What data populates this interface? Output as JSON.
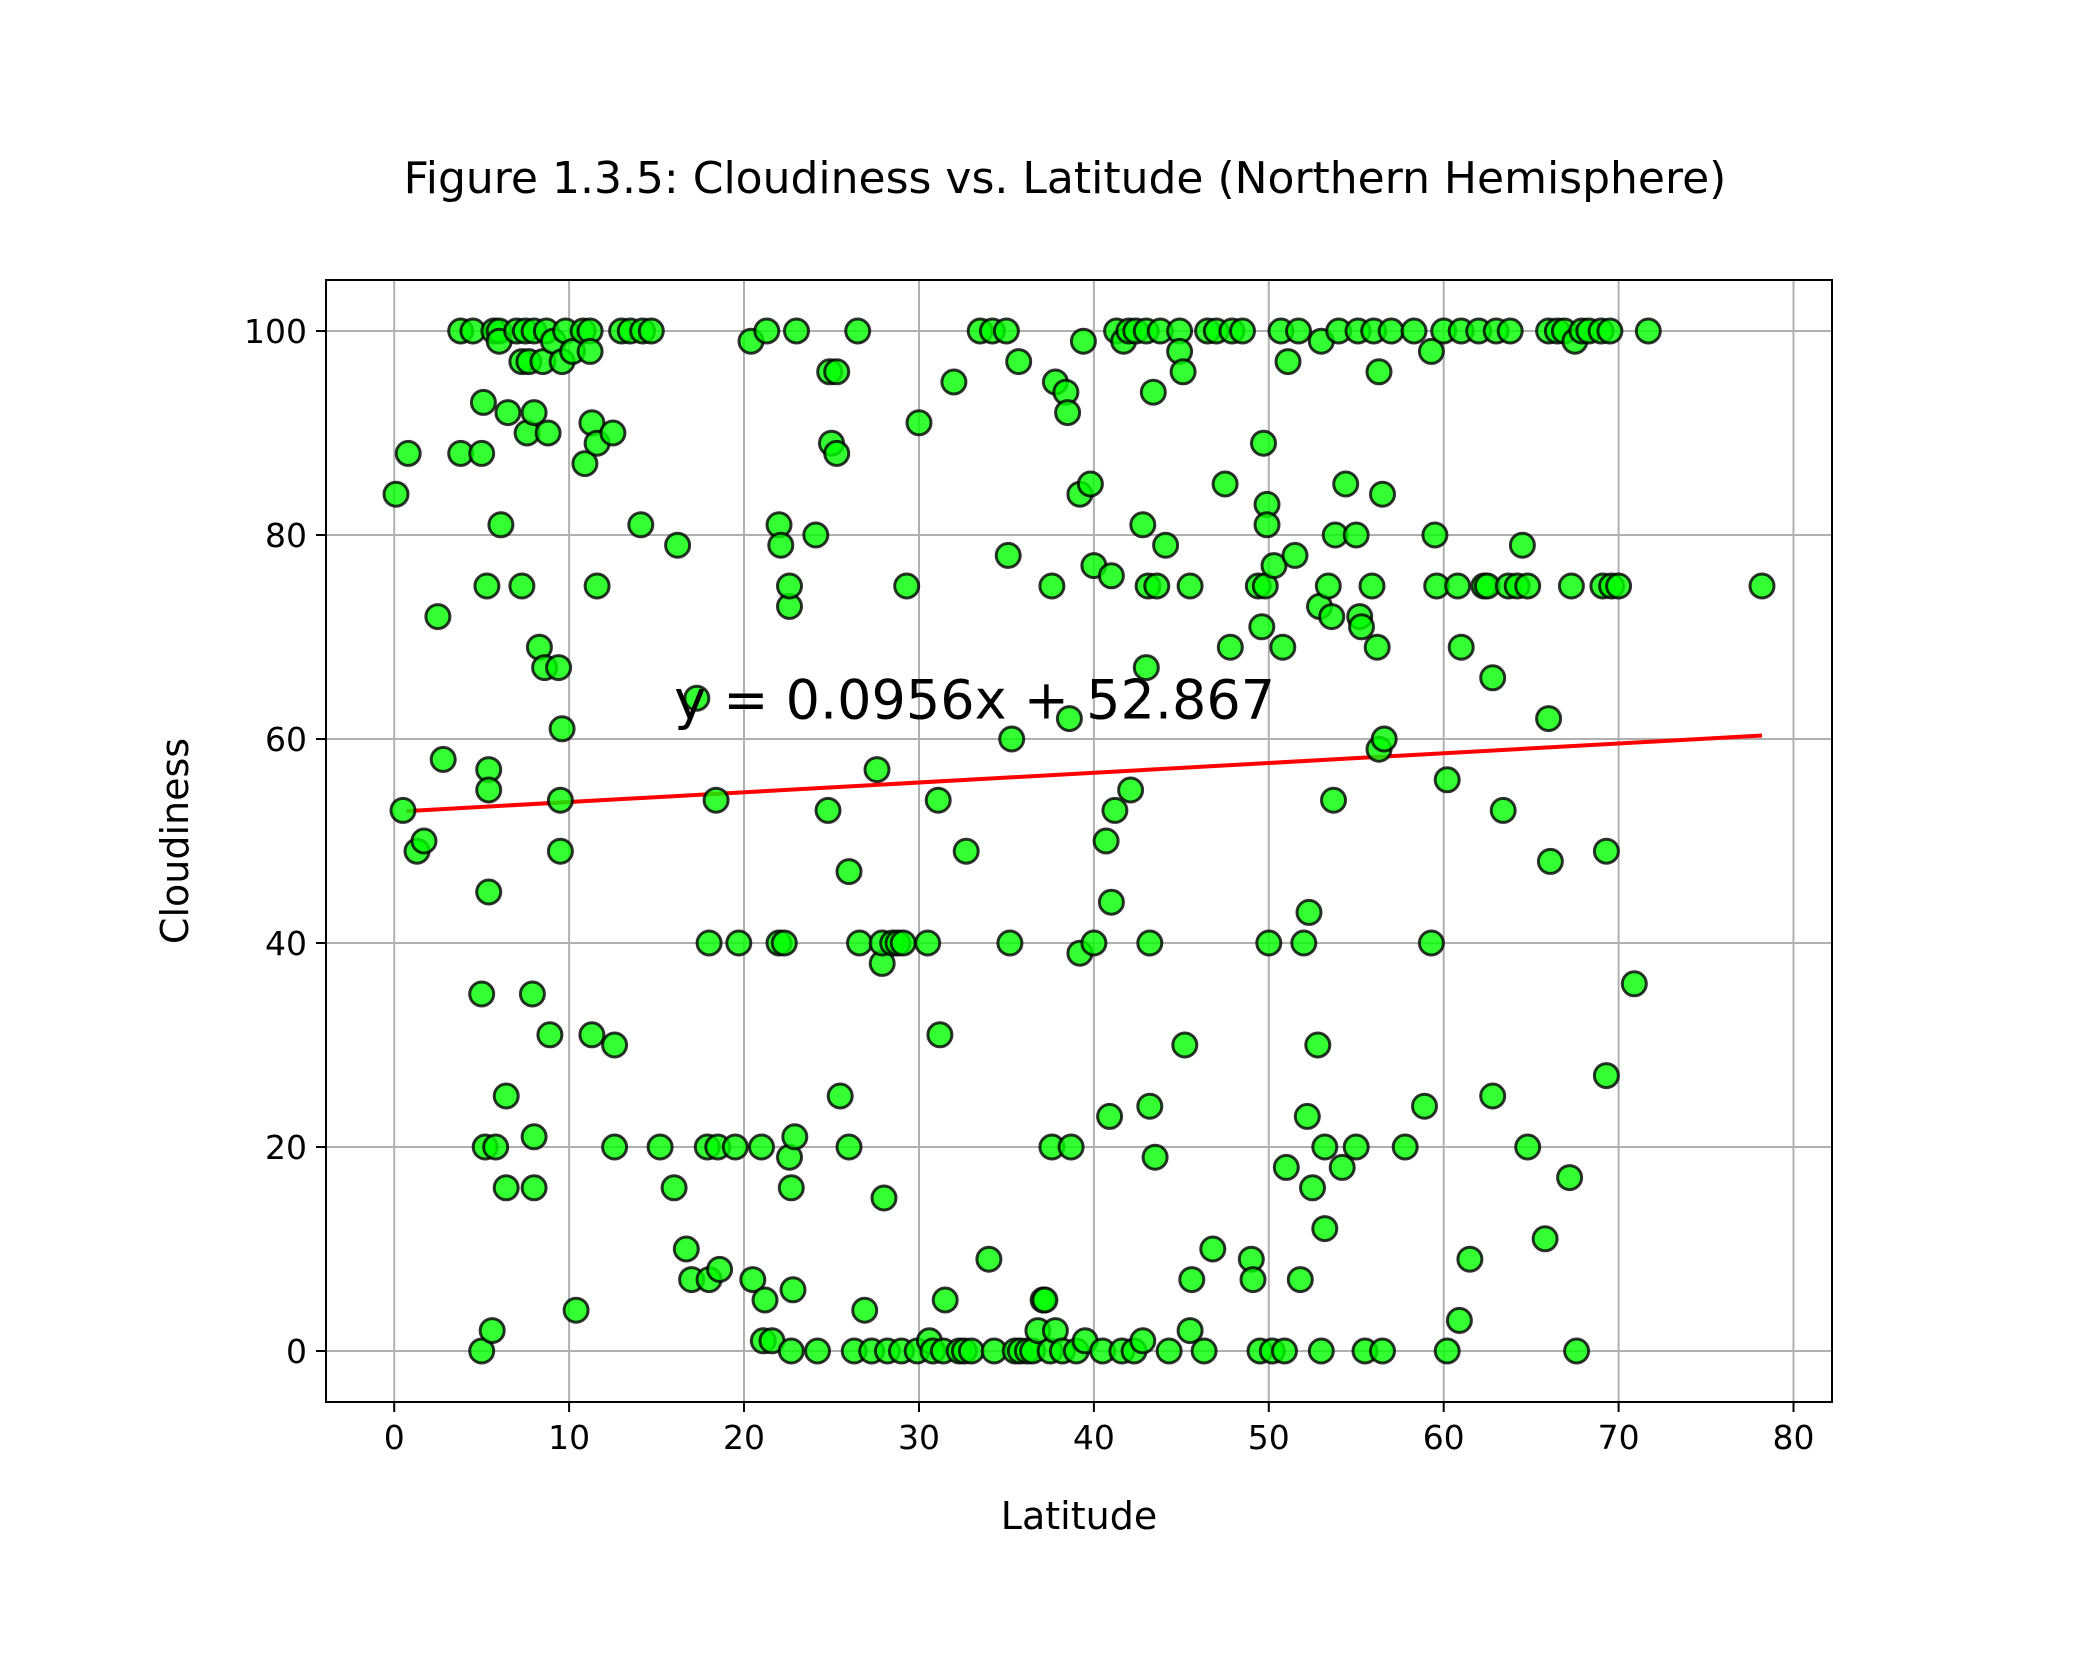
{
  "chart_data": {
    "type": "scatter",
    "title": "Figure 1.3.5: Cloudiness vs. Latitude (Northern Hemisphere)",
    "xlabel": "Latitude",
    "ylabel": "Cloudiness",
    "xlim": [
      -3.9,
      82.2
    ],
    "ylim": [
      -5,
      105
    ],
    "xticks": [
      0,
      10,
      20,
      30,
      40,
      50,
      60,
      70,
      80
    ],
    "yticks": [
      0,
      20,
      40,
      60,
      80,
      100
    ],
    "grid": true,
    "colors": {
      "marker_fill": "#00ff00",
      "marker_edge": "#000000",
      "regression": "#ff0000",
      "annotation": "#0000ff",
      "grid": "#b0b0b0"
    },
    "regression": {
      "slope": 0.0956,
      "intercept": 52.867,
      "x_range": [
        0.7,
        78.2
      ],
      "equation_label": "y = 0.0956x + 52.867",
      "label_x": 16,
      "label_y": 62
    },
    "points": [
      [
        0.1,
        84
      ],
      [
        0.5,
        53
      ],
      [
        0.8,
        88
      ],
      [
        1.3,
        49
      ],
      [
        1.7,
        50
      ],
      [
        2.5,
        72
      ],
      [
        2.8,
        58
      ],
      [
        3.8,
        100
      ],
      [
        3.8,
        88
      ],
      [
        4.5,
        100
      ],
      [
        5.0,
        88
      ],
      [
        5.1,
        93
      ],
      [
        5.3,
        75
      ],
      [
        5.0,
        35
      ],
      [
        5.0,
        0
      ],
      [
        5.4,
        57
      ],
      [
        5.4,
        55
      ],
      [
        5.4,
        45
      ],
      [
        5.2,
        20
      ],
      [
        5.6,
        2
      ],
      [
        5.7,
        100
      ],
      [
        6.0,
        100
      ],
      [
        6.0,
        99
      ],
      [
        6.1,
        81
      ],
      [
        6.5,
        92
      ],
      [
        6.4,
        25
      ],
      [
        6.4,
        16
      ],
      [
        5.8,
        20
      ],
      [
        7.0,
        100
      ],
      [
        7.3,
        97
      ],
      [
        7.3,
        75
      ],
      [
        7.5,
        100
      ],
      [
        7.6,
        90
      ],
      [
        7.7,
        97
      ],
      [
        7.9,
        35
      ],
      [
        8.0,
        92
      ],
      [
        8.0,
        100
      ],
      [
        8.0,
        21
      ],
      [
        8.0,
        16
      ],
      [
        8.3,
        69
      ],
      [
        8.5,
        97
      ],
      [
        8.6,
        67
      ],
      [
        8.8,
        90
      ],
      [
        8.9,
        31
      ],
      [
        8.7,
        100
      ],
      [
        9.1,
        99
      ],
      [
        9.4,
        67
      ],
      [
        9.6,
        97
      ],
      [
        9.6,
        61
      ],
      [
        9.5,
        54
      ],
      [
        9.5,
        49
      ],
      [
        9.8,
        100
      ],
      [
        10.2,
        98
      ],
      [
        10.4,
        4
      ],
      [
        10.8,
        100
      ],
      [
        10.9,
        87
      ],
      [
        11.2,
        100
      ],
      [
        11.2,
        98
      ],
      [
        11.3,
        91
      ],
      [
        11.6,
        89
      ],
      [
        11.6,
        75
      ],
      [
        11.3,
        31
      ],
      [
        12.5,
        90
      ],
      [
        12.6,
        30
      ],
      [
        12.6,
        20
      ],
      [
        13.0,
        100
      ],
      [
        13.5,
        100
      ],
      [
        14.1,
        81
      ],
      [
        14.2,
        100
      ],
      [
        14.7,
        100
      ],
      [
        15.2,
        20
      ],
      [
        16.0,
        16
      ],
      [
        16.2,
        79
      ],
      [
        16.7,
        10
      ],
      [
        17.0,
        7
      ],
      [
        17.3,
        64
      ],
      [
        18.0,
        40
      ],
      [
        17.9,
        20
      ],
      [
        18.0,
        7
      ],
      [
        18.4,
        54
      ],
      [
        18.5,
        20
      ],
      [
        18.6,
        8
      ],
      [
        19.5,
        20
      ],
      [
        19.7,
        40
      ],
      [
        20.4,
        99
      ],
      [
        20.5,
        7
      ],
      [
        21.0,
        20
      ],
      [
        21.1,
        1
      ],
      [
        21.3,
        100
      ],
      [
        21.2,
        5
      ],
      [
        21.6,
        1
      ],
      [
        22.0,
        81
      ],
      [
        22.1,
        79
      ],
      [
        22.0,
        40
      ],
      [
        22.3,
        40
      ],
      [
        22.6,
        73
      ],
      [
        22.6,
        75
      ],
      [
        22.6,
        19
      ],
      [
        22.7,
        16
      ],
      [
        22.8,
        6
      ],
      [
        22.7,
        0
      ],
      [
        22.9,
        21
      ],
      [
        23.0,
        100
      ],
      [
        24.1,
        80
      ],
      [
        24.2,
        0
      ],
      [
        24.8,
        53
      ],
      [
        24.9,
        96
      ],
      [
        25.0,
        89
      ],
      [
        25.3,
        96
      ],
      [
        25.3,
        88
      ],
      [
        25.5,
        25
      ],
      [
        26.0,
        47
      ],
      [
        26.0,
        20
      ],
      [
        26.3,
        0
      ],
      [
        26.5,
        100
      ],
      [
        26.6,
        40
      ],
      [
        26.9,
        4
      ],
      [
        27.3,
        0
      ],
      [
        27.6,
        57
      ],
      [
        27.9,
        38
      ],
      [
        28.0,
        15
      ],
      [
        27.9,
        40
      ],
      [
        28.5,
        40
      ],
      [
        28.2,
        0
      ],
      [
        28.8,
        40
      ],
      [
        29.1,
        40
      ],
      [
        29.0,
        0
      ],
      [
        29.3,
        75
      ],
      [
        30.0,
        91
      ],
      [
        29.9,
        0
      ],
      [
        30.5,
        40
      ],
      [
        30.6,
        1
      ],
      [
        30.8,
        0
      ],
      [
        31.1,
        54
      ],
      [
        31.2,
        31
      ],
      [
        31.5,
        5
      ],
      [
        31.4,
        0
      ],
      [
        32.0,
        95
      ],
      [
        32.3,
        0
      ],
      [
        32.7,
        49
      ],
      [
        32.6,
        0
      ],
      [
        33.0,
        0
      ],
      [
        33.5,
        100
      ],
      [
        34.0,
        9
      ],
      [
        34.2,
        100
      ],
      [
        34.3,
        0
      ],
      [
        35.0,
        100
      ],
      [
        35.1,
        78
      ],
      [
        35.2,
        40
      ],
      [
        35.3,
        60
      ],
      [
        35.5,
        0
      ],
      [
        35.7,
        97
      ],
      [
        35.8,
        0
      ],
      [
        36.2,
        0
      ],
      [
        36.5,
        0
      ],
      [
        36.8,
        2
      ],
      [
        37.1,
        5
      ],
      [
        37.2,
        5
      ],
      [
        37.5,
        0
      ],
      [
        37.6,
        20
      ],
      [
        37.6,
        75
      ],
      [
        37.8,
        95
      ],
      [
        37.8,
        2
      ],
      [
        38.2,
        0
      ],
      [
        38.4,
        94
      ],
      [
        38.5,
        92
      ],
      [
        38.6,
        62
      ],
      [
        38.7,
        20
      ],
      [
        39.0,
        0
      ],
      [
        39.2,
        39
      ],
      [
        39.2,
        84
      ],
      [
        39.4,
        99
      ],
      [
        39.5,
        1
      ],
      [
        39.8,
        85
      ],
      [
        40.0,
        77
      ],
      [
        40.0,
        40
      ],
      [
        40.5,
        0
      ],
      [
        40.7,
        50
      ],
      [
        40.9,
        23
      ],
      [
        41.0,
        76
      ],
      [
        41.0,
        44
      ],
      [
        41.2,
        53
      ],
      [
        41.3,
        100
      ],
      [
        41.6,
        0
      ],
      [
        41.7,
        99
      ],
      [
        42.0,
        100
      ],
      [
        42.1,
        55
      ],
      [
        42.3,
        0
      ],
      [
        42.4,
        100
      ],
      [
        42.8,
        81
      ],
      [
        42.8,
        1
      ],
      [
        43.0,
        67
      ],
      [
        43.0,
        100
      ],
      [
        43.1,
        75
      ],
      [
        43.2,
        24
      ],
      [
        43.2,
        40
      ],
      [
        43.4,
        94
      ],
      [
        43.5,
        19
      ],
      [
        43.6,
        75
      ],
      [
        43.8,
        100
      ],
      [
        44.1,
        79
      ],
      [
        44.3,
        0
      ],
      [
        44.9,
        100
      ],
      [
        44.9,
        98
      ],
      [
        45.1,
        96
      ],
      [
        45.2,
        30
      ],
      [
        45.5,
        75
      ],
      [
        45.6,
        7
      ],
      [
        45.5,
        2
      ],
      [
        46.3,
        0
      ],
      [
        46.5,
        100
      ],
      [
        46.8,
        10
      ],
      [
        47.0,
        100
      ],
      [
        47.5,
        85
      ],
      [
        47.8,
        69
      ],
      [
        47.9,
        100
      ],
      [
        48.5,
        100
      ],
      [
        49.0,
        9
      ],
      [
        49.1,
        7
      ],
      [
        49.4,
        75
      ],
      [
        49.5,
        0
      ],
      [
        49.7,
        89
      ],
      [
        49.6,
        71
      ],
      [
        49.8,
        75
      ],
      [
        49.9,
        83
      ],
      [
        49.9,
        81
      ],
      [
        50.0,
        40
      ],
      [
        50.2,
        0
      ],
      [
        50.3,
        77
      ],
      [
        50.7,
        100
      ],
      [
        50.8,
        69
      ],
      [
        50.9,
        0
      ],
      [
        51.0,
        18
      ],
      [
        51.1,
        97
      ],
      [
        51.5,
        78
      ],
      [
        51.7,
        100
      ],
      [
        51.8,
        7
      ],
      [
        52.0,
        40
      ],
      [
        52.2,
        23
      ],
      [
        52.3,
        43
      ],
      [
        52.5,
        16
      ],
      [
        52.8,
        30
      ],
      [
        52.9,
        73
      ],
      [
        53.0,
        99
      ],
      [
        53.0,
        0
      ],
      [
        53.2,
        20
      ],
      [
        53.2,
        12
      ],
      [
        53.4,
        75
      ],
      [
        53.6,
        72
      ],
      [
        53.7,
        54
      ],
      [
        53.8,
        80
      ],
      [
        54.0,
        100
      ],
      [
        54.2,
        18
      ],
      [
        54.4,
        85
      ],
      [
        55.0,
        80
      ],
      [
        55.1,
        100
      ],
      [
        55.0,
        20
      ],
      [
        55.2,
        72
      ],
      [
        55.3,
        71
      ],
      [
        55.5,
        0
      ],
      [
        55.9,
        75
      ],
      [
        56.0,
        100
      ],
      [
        56.2,
        69
      ],
      [
        56.3,
        59
      ],
      [
        56.3,
        96
      ],
      [
        56.5,
        84
      ],
      [
        56.6,
        60
      ],
      [
        56.5,
        0
      ],
      [
        57.0,
        100
      ],
      [
        57.8,
        20
      ],
      [
        58.3,
        100
      ],
      [
        58.9,
        24
      ],
      [
        59.3,
        40
      ],
      [
        59.3,
        98
      ],
      [
        59.5,
        80
      ],
      [
        59.6,
        75
      ],
      [
        60.0,
        100
      ],
      [
        60.2,
        56
      ],
      [
        60.2,
        0
      ],
      [
        60.8,
        75
      ],
      [
        60.9,
        3
      ],
      [
        61.0,
        100
      ],
      [
        61.0,
        69
      ],
      [
        61.5,
        9
      ],
      [
        62.0,
        100
      ],
      [
        62.3,
        75
      ],
      [
        62.5,
        75
      ],
      [
        62.8,
        25
      ],
      [
        62.8,
        66
      ],
      [
        63.0,
        100
      ],
      [
        63.4,
        53
      ],
      [
        63.7,
        75
      ],
      [
        63.8,
        100
      ],
      [
        64.2,
        75
      ],
      [
        64.5,
        79
      ],
      [
        64.8,
        75
      ],
      [
        64.8,
        20
      ],
      [
        65.8,
        11
      ],
      [
        66.0,
        62
      ],
      [
        66.0,
        100
      ],
      [
        66.1,
        48
      ],
      [
        66.5,
        100
      ],
      [
        66.9,
        100
      ],
      [
        67.2,
        17
      ],
      [
        67.3,
        75
      ],
      [
        67.5,
        99
      ],
      [
        67.6,
        0
      ],
      [
        67.9,
        100
      ],
      [
        68.3,
        100
      ],
      [
        69.0,
        100
      ],
      [
        69.1,
        75
      ],
      [
        69.3,
        49
      ],
      [
        69.3,
        27
      ],
      [
        69.5,
        100
      ],
      [
        69.6,
        75
      ],
      [
        70.0,
        75
      ],
      [
        70.9,
        36
      ],
      [
        71.7,
        100
      ],
      [
        78.2,
        75
      ]
    ]
  }
}
